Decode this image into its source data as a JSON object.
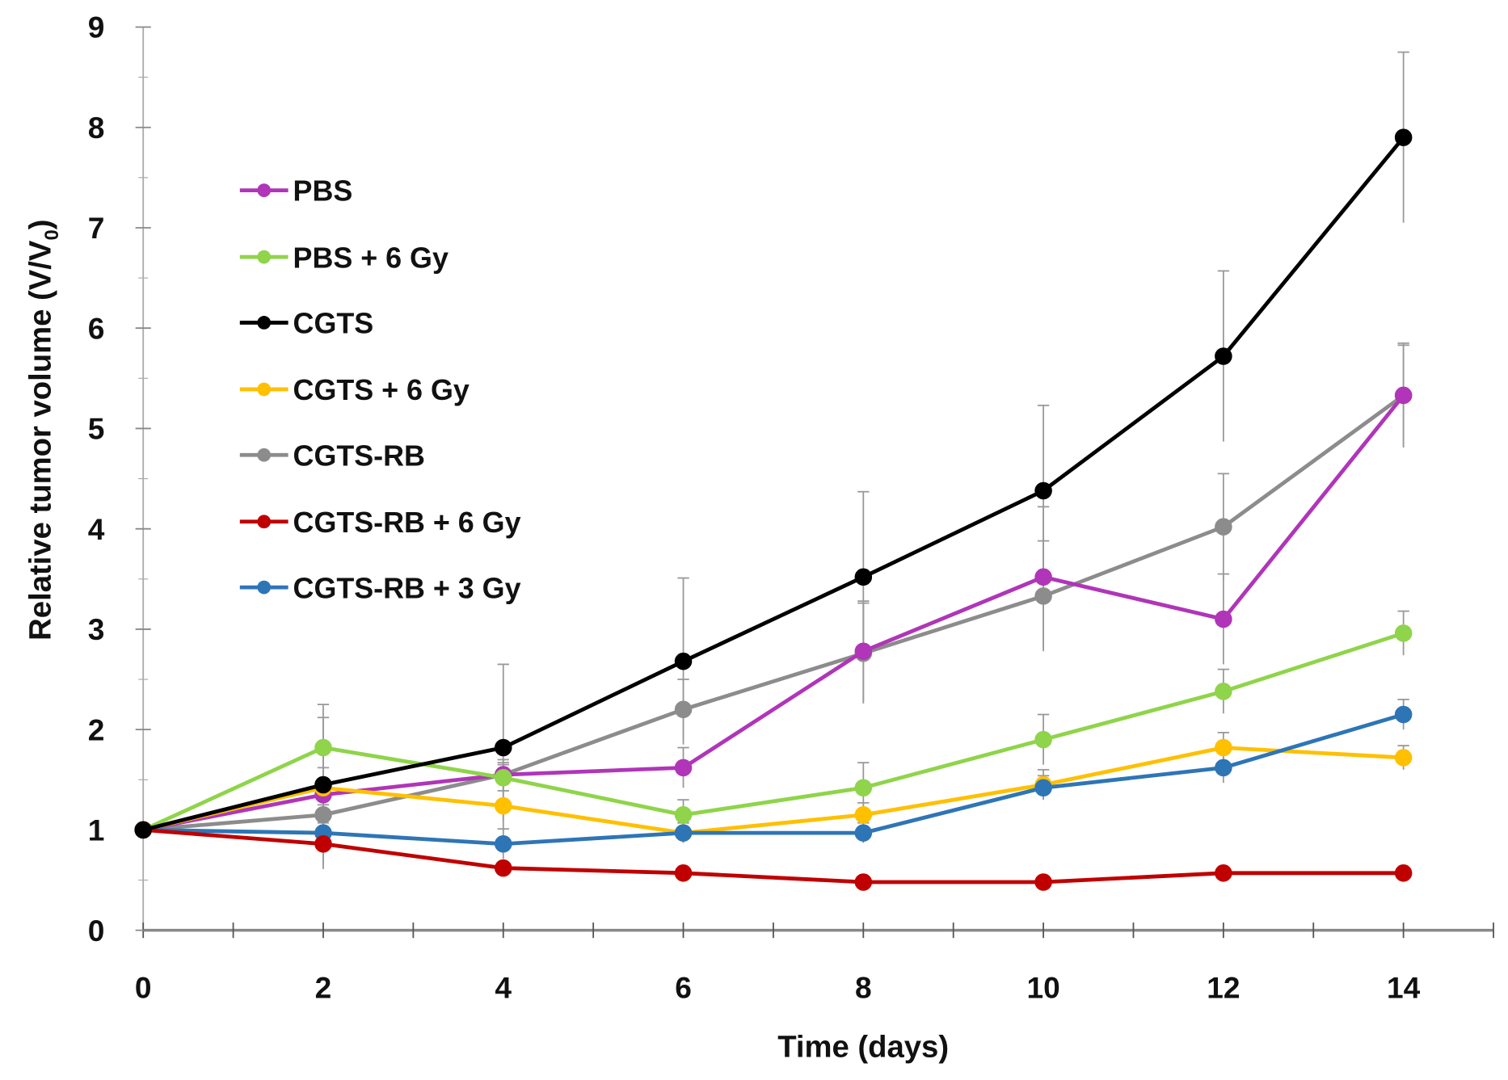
{
  "chart_data": {
    "type": "line",
    "title": "",
    "xlabel": "Time (days)",
    "ylabel_main": "Relative tumor volume (V/V",
    "ylabel_sub": "0",
    "ylabel_end": ")",
    "xlim": [
      0,
      15
    ],
    "ylim": [
      0,
      9
    ],
    "x": [
      0,
      2,
      4,
      6,
      8,
      10,
      12,
      14
    ],
    "xticks": [
      "0",
      "2",
      "4",
      "6",
      "8",
      "10",
      "12",
      "14"
    ],
    "yticks": [
      "0",
      "1",
      "2",
      "3",
      "4",
      "5",
      "6",
      "7",
      "8",
      "9"
    ],
    "grid": false,
    "legend_position": "top-left",
    "series": [
      {
        "name": "PBS",
        "color": "#b035b8",
        "values": [
          1,
          1.35,
          1.55,
          1.62,
          2.78,
          3.52,
          3.1,
          5.33
        ],
        "err": [
          0,
          0.15,
          0.15,
          0.2,
          0.5,
          0.7,
          0.45,
          0.5
        ]
      },
      {
        "name": "PBS + 6 Gy",
        "color": "#8fd44a",
        "values": [
          1,
          1.82,
          1.52,
          1.15,
          1.42,
          1.9,
          2.38,
          2.96
        ],
        "err": [
          0,
          0.3,
          0.15,
          0.15,
          0.25,
          0.25,
          0.22,
          0.22
        ]
      },
      {
        "name": "CGTS",
        "color": "#000000",
        "values": [
          1,
          1.45,
          1.82,
          2.68,
          3.52,
          4.38,
          5.72,
          7.9
        ],
        "err": [
          0,
          0.8,
          0.83,
          0.83,
          0.85,
          0.85,
          0.85,
          0.85
        ]
      },
      {
        "name": "CGTS + 6 Gy",
        "color": "#ffc000",
        "values": [
          1,
          1.42,
          1.24,
          0.97,
          1.15,
          1.45,
          1.82,
          1.72
        ],
        "err": [
          0,
          0.2,
          0.15,
          0.1,
          0.12,
          0.15,
          0.15,
          0.12
        ]
      },
      {
        "name": "CGTS-RB",
        "color": "#8c8c8c",
        "values": [
          1,
          1.15,
          1.55,
          2.2,
          2.76,
          3.33,
          4.02,
          5.33
        ],
        "err": [
          0,
          0.1,
          0.1,
          0.3,
          0.5,
          0.55,
          0.53,
          0.52
        ]
      },
      {
        "name": "CGTS-RB + 6 Gy",
        "color": "#c00000",
        "values": [
          1,
          0.86,
          0.62,
          0.57,
          0.48,
          0.48,
          0.57,
          0.57
        ],
        "err": [
          0,
          0.25,
          0.05,
          0.05,
          0.05,
          0.05,
          0.05,
          0.05
        ]
      },
      {
        "name": "CGTS-RB + 3 Gy",
        "color": "#2e75b6",
        "values": [
          1,
          0.97,
          0.86,
          0.97,
          0.97,
          1.42,
          1.62,
          2.15
        ],
        "err": [
          0,
          0.1,
          0.15,
          0.1,
          0.1,
          0.12,
          0.15,
          0.15
        ]
      }
    ]
  }
}
